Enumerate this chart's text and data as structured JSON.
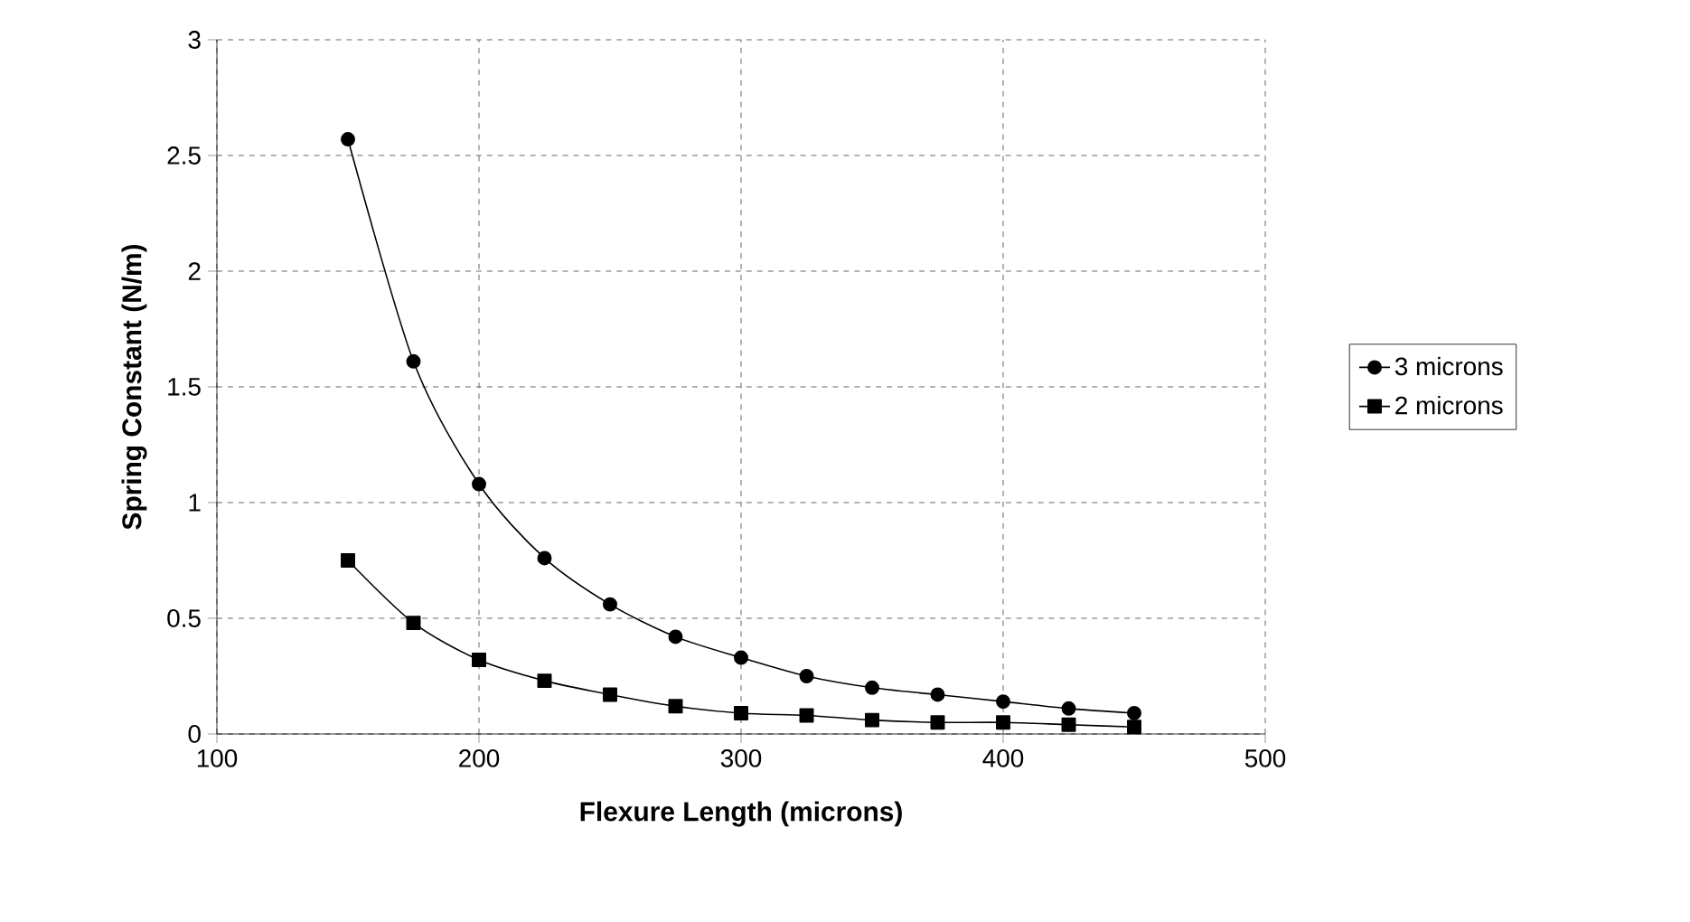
{
  "chart_data": {
    "type": "line",
    "xlabel": "Flexure Length (microns)",
    "ylabel": "Spring Constant (N/m)",
    "x": [
      150,
      175,
      200,
      225,
      250,
      275,
      300,
      325,
      350,
      375,
      400,
      425,
      450
    ],
    "series": [
      {
        "name": "3 microns",
        "color": "#000000",
        "marker": "circle",
        "values": [
          2.57,
          1.61,
          1.08,
          0.76,
          0.56,
          0.42,
          0.33,
          0.25,
          0.2,
          0.17,
          0.14,
          0.11,
          0.09
        ]
      },
      {
        "name": "2 microns",
        "color": "#000000",
        "marker": "square",
        "values": [
          0.75,
          0.48,
          0.32,
          0.23,
          0.17,
          0.12,
          0.09,
          0.08,
          0.06,
          0.05,
          0.05,
          0.04,
          0.03
        ]
      }
    ],
    "xlim": [
      100,
      500
    ],
    "xticks": [
      100,
      200,
      300,
      400,
      500
    ],
    "ylim": [
      0,
      3
    ],
    "yticks": [
      0,
      0.5,
      1,
      1.5,
      2,
      2.5,
      3
    ],
    "grid": true,
    "legend": "right",
    "line_style": "solid"
  }
}
